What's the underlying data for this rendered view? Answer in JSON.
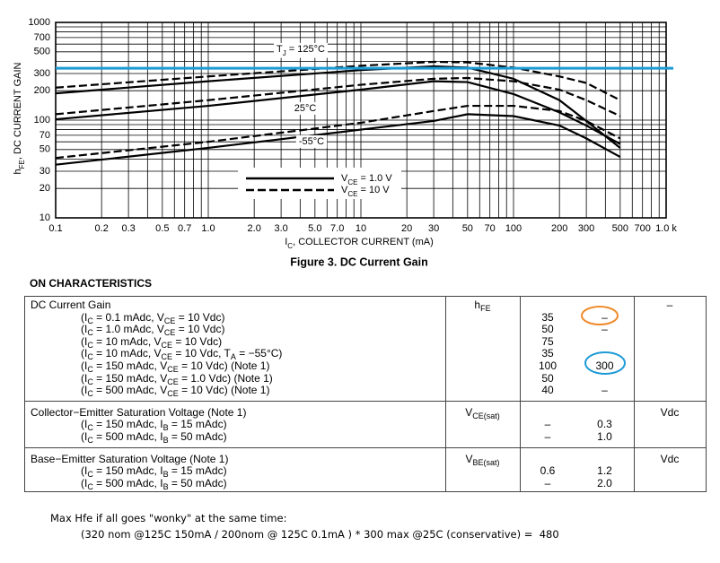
{
  "chart_data": {
    "type": "line",
    "title": "Figure 3. DC Current Gain",
    "y_label": [
      "h",
      {
        "sub": "FE"
      },
      ", DC CURRENT GAIN"
    ],
    "x_label": [
      "I",
      {
        "sub": "C"
      },
      ", COLLECTOR CURRENT (mA)"
    ],
    "x": [
      0.1,
      1,
      10,
      30,
      50,
      100,
      200,
      300,
      500
    ],
    "series": [
      {
        "color": "#000000",
        "dash": false,
        "values": [
          188,
          250,
          325,
          355,
          345,
          265,
          160,
          98,
          52
        ]
      },
      {
        "color": "#000000",
        "dash": true,
        "values": [
          215,
          280,
          360,
          395,
          390,
          345,
          280,
          240,
          160
        ]
      },
      {
        "color": "#000000",
        "dash": false,
        "values": [
          102,
          140,
          205,
          250,
          245,
          185,
          120,
          88,
          57
        ]
      },
      {
        "color": "#000000",
        "dash": true,
        "values": [
          115,
          160,
          230,
          265,
          270,
          250,
          205,
          160,
          110
        ]
      },
      {
        "color": "#000000",
        "dash": false,
        "values": [
          35,
          52,
          80,
          98,
          115,
          110,
          88,
          65,
          42
        ]
      },
      {
        "color": "#000000",
        "dash": true,
        "values": [
          41,
          60,
          94,
          124,
          140,
          140,
          124,
          98,
          65
        ]
      }
    ],
    "annotations": [
      [
        "T",
        {
          "sub": "J"
        },
        " = 125°C"
      ],
      [
        "25°C"
      ],
      [
        "-55°C"
      ]
    ],
    "legend_entries": [
      {
        "text": [
          "V",
          {
            "sub": "CE"
          },
          " = 1.0 V"
        ],
        "dash": false
      },
      {
        "text": [
          "V",
          {
            "sub": "CE"
          },
          " = 10 V"
        ],
        "dash": true
      }
    ],
    "reference_line": {
      "value": 340,
      "color": "#1e9ad6"
    },
    "log_x": true,
    "log_y": true,
    "grid": true,
    "xlim": [
      0.1,
      1000
    ],
    "ylim": [
      10,
      1000
    ],
    "xticks": [
      0.1,
      0.2,
      0.3,
      0.5,
      0.7,
      {
        "value": 1,
        "label": "1.0"
      },
      {
        "value": 2,
        "label": "2.0"
      },
      {
        "value": 3,
        "label": "3.0"
      },
      {
        "value": 5,
        "label": "5.0"
      },
      {
        "value": 7,
        "label": "7.0"
      },
      10,
      20,
      30,
      50,
      70,
      100,
      200,
      300,
      500,
      700,
      {
        "value": 1000,
        "label": "1.0 k"
      }
    ],
    "yticks": [
      10,
      20,
      30,
      50,
      70,
      100,
      200,
      300,
      500,
      700,
      1000
    ],
    "x_minor_grid": [
      0.4,
      0.6,
      0.8,
      0.9,
      4,
      6,
      8,
      9,
      40,
      60,
      80,
      90,
      400,
      600,
      800,
      900
    ],
    "y_minor_grid": [
      40,
      60,
      80,
      90,
      400,
      600,
      800,
      900
    ]
  },
  "table": {
    "heading": "ON CHARACTERISTICS",
    "sections": [
      {
        "parameter": "DC Current Gain",
        "symbol": [
          "h",
          {
            "sub": "FE"
          }
        ],
        "unit": "–",
        "rows": [
          {
            "condition": [
              "(I",
              {
                "sub": "C"
              },
              " = 0.1 mAdc, V",
              {
                "sub": "CE"
              },
              " = 10 Vdc)"
            ],
            "min": "35",
            "max": "–"
          },
          {
            "condition": [
              "(I",
              {
                "sub": "C"
              },
              " = 1.0 mAdc, V",
              {
                "sub": "CE"
              },
              " = 10 Vdc)"
            ],
            "min": "50",
            "max": "–"
          },
          {
            "condition": [
              "(I",
              {
                "sub": "C"
              },
              " = 10 mAdc, V",
              {
                "sub": "CE"
              },
              " = 10 Vdc)"
            ],
            "min": "75",
            "max": null
          },
          {
            "condition": [
              "(I",
              {
                "sub": "C"
              },
              " = 10 mAdc, V",
              {
                "sub": "CE"
              },
              " = 10 Vdc, T",
              {
                "sub": "A"
              },
              " = −55°C)"
            ],
            "min": "35",
            "max": null
          },
          {
            "condition": [
              "(I",
              {
                "sub": "C"
              },
              " = 150 mAdc, V",
              {
                "sub": "CE"
              },
              " = 10 Vdc) (Note 1)"
            ],
            "min": "100",
            "max": "300"
          },
          {
            "condition": [
              "(I",
              {
                "sub": "C"
              },
              " = 150 mAdc, V",
              {
                "sub": "CE"
              },
              " = 1.0 Vdc) (Note 1)"
            ],
            "min": "50",
            "max": null
          },
          {
            "condition": [
              "(I",
              {
                "sub": "C"
              },
              " = 500 mAdc, V",
              {
                "sub": "CE"
              },
              " = 10 Vdc) (Note 1)"
            ],
            "min": "40",
            "max": "–"
          }
        ]
      },
      {
        "parameter": "Collector−Emitter Saturation Voltage (Note 1)",
        "symbol": [
          "V",
          {
            "sub": "CE(sat)"
          }
        ],
        "unit": "Vdc",
        "rows": [
          {
            "condition": [
              "(I",
              {
                "sub": "C"
              },
              " = 150 mAdc, I",
              {
                "sub": "B"
              },
              " = 15 mAdc)"
            ],
            "min": "–",
            "max": "0.3"
          },
          {
            "condition": [
              "(I",
              {
                "sub": "C"
              },
              " = 500 mAdc, I",
              {
                "sub": "B"
              },
              " = 50 mAdc)"
            ],
            "min": "–",
            "max": "1.0"
          }
        ]
      },
      {
        "parameter": "Base−Emitter Saturation Voltage (Note 1)",
        "symbol": [
          "V",
          {
            "sub": "BE(sat)"
          }
        ],
        "unit": "Vdc",
        "rows": [
          {
            "condition": [
              "(I",
              {
                "sub": "C"
              },
              " = 150 mAdc, I",
              {
                "sub": "B"
              },
              " = 15 mAdc)"
            ],
            "min": "0.6",
            "max": "1.2"
          },
          {
            "condition": [
              "(I",
              {
                "sub": "C"
              },
              " = 500 mAdc, I",
              {
                "sub": "B"
              },
              " = 50 mAdc)"
            ],
            "min": "–",
            "max": "2.0"
          }
        ]
      }
    ]
  },
  "note": {
    "line1": "Max Hfe if all goes \"wonky\" at the same time:",
    "line2": "(320 nom @125C 150mA / 200nom @ 125C 0.1mA ) * 300 max @25C (conservative) =  480"
  }
}
